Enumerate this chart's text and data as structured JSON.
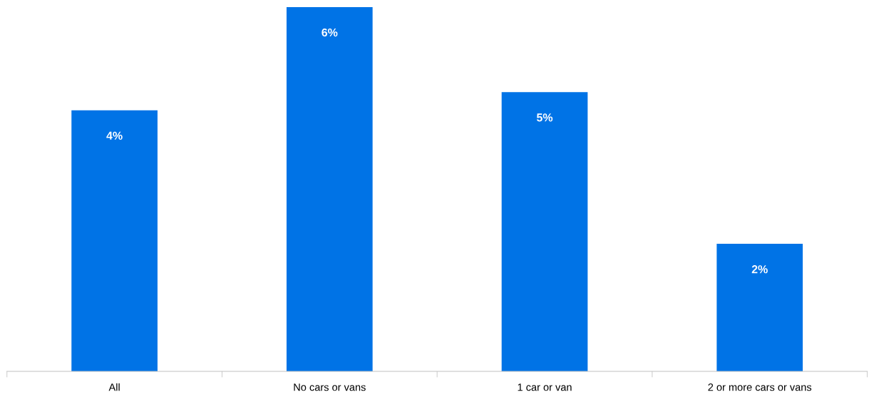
{
  "chart_data": {
    "type": "bar",
    "categories": [
      "All",
      "No cars or vans",
      "1 car or van",
      "2 or more cars or vans"
    ],
    "values": [
      4.3,
      6,
      4.6,
      2.1
    ],
    "color": "#0073e6",
    "value_labels": [
      "4%",
      "6%",
      "5%",
      "2%"
    ],
    "grid": false,
    "legend": false
  }
}
